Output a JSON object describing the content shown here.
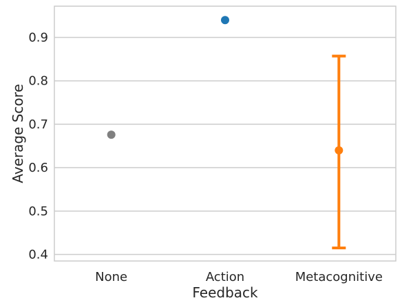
{
  "chart_data": {
    "type": "scatter",
    "title": "",
    "xlabel": "Feedback",
    "ylabel": "Average Score",
    "categories": [
      "None",
      "Action",
      "Metacognitive"
    ],
    "points": [
      {
        "category": "None",
        "value": 0.676,
        "color": "#808080",
        "error": null
      },
      {
        "category": "Action",
        "value": 0.94,
        "color": "#1f77b4",
        "error": null
      },
      {
        "category": "Metacognitive",
        "value": 0.64,
        "color": "#ff7f0e",
        "error": [
          0.415,
          0.857
        ]
      }
    ],
    "yticks": [
      0.4,
      0.5,
      0.6,
      0.7,
      0.8,
      0.9
    ],
    "ytick_labels": [
      "0.4",
      "0.5",
      "0.6",
      "0.7",
      "0.8",
      "0.9"
    ],
    "ylim": [
      0.385,
      0.972
    ],
    "grid": true,
    "legend": false
  }
}
